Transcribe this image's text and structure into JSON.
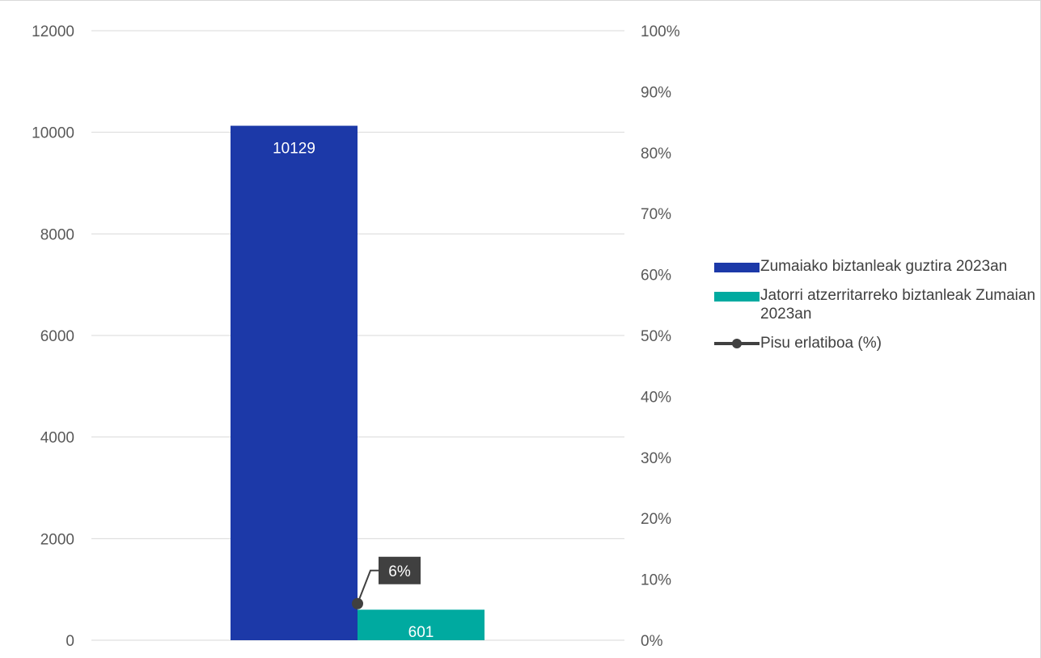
{
  "chart_data": {
    "type": "bar",
    "categories": [
      ""
    ],
    "series": [
      {
        "name": "Zumaiako biztanleak guztira 2023an",
        "values": [
          10129
        ],
        "color": "#1c39a8",
        "axis": "left",
        "data_labels": [
          "10129"
        ]
      },
      {
        "name": "Jatorri atzerritarreko biztanleak Zumaian 2023an",
        "values": [
          601
        ],
        "color": "#00aaa0",
        "axis": "left",
        "data_labels": [
          "601"
        ]
      },
      {
        "name": "Pisu erlatiboa (%)",
        "type": "line",
        "values": [
          6
        ],
        "color": "#404040",
        "axis": "right",
        "data_labels": [
          "6%"
        ]
      }
    ],
    "y_left": {
      "ylim": [
        0,
        12000
      ],
      "ticks": [
        "0",
        "2000",
        "4000",
        "6000",
        "8000",
        "10000",
        "12000"
      ]
    },
    "y_right": {
      "ylim": [
        0,
        100
      ],
      "ticks": [
        "0%",
        "10%",
        "20%",
        "30%",
        "40%",
        "50%",
        "60%",
        "70%",
        "80%",
        "90%",
        "100%"
      ]
    },
    "grid": true,
    "legend_position": "right"
  }
}
